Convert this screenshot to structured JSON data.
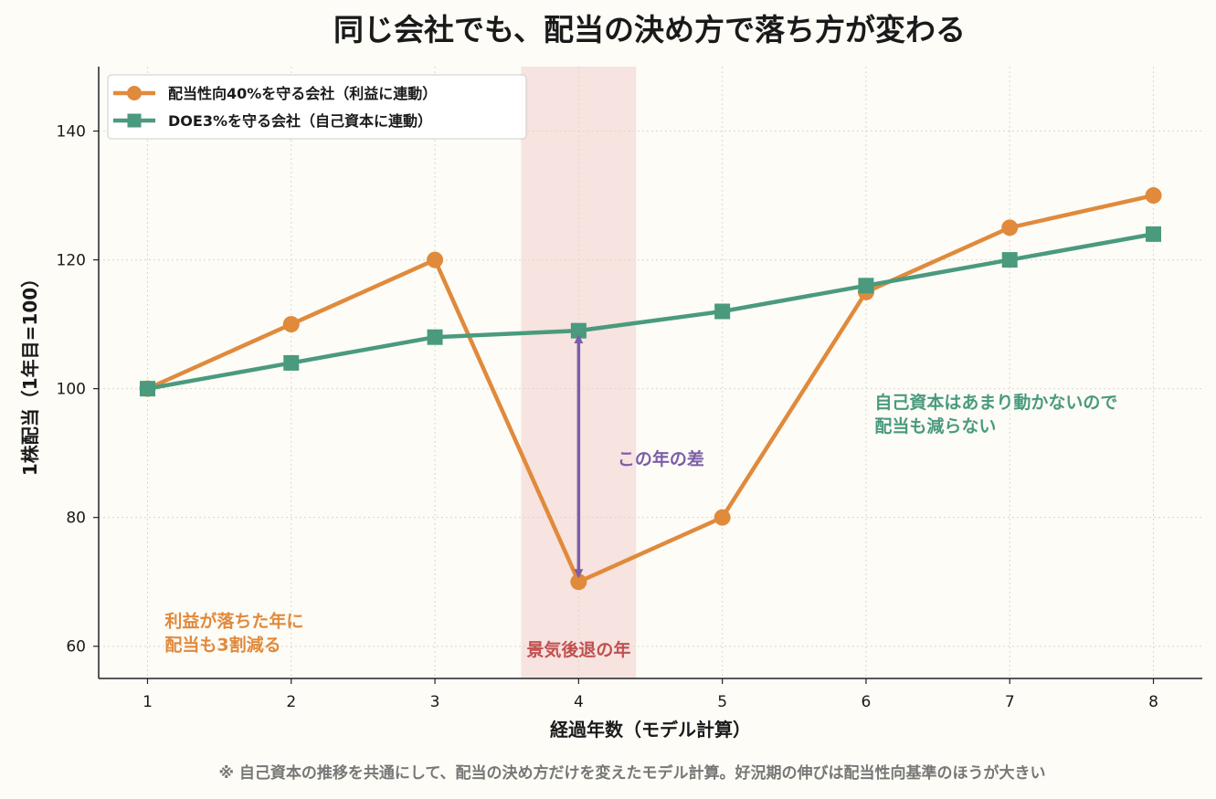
{
  "chart_data": {
    "type": "line",
    "title": "同じ会社でも、配当の決め方で落ち方が変わる",
    "xlabel": "経過年数（モデル計算）",
    "ylabel": "1株配当（1年目=100）",
    "x": [
      1,
      2,
      3,
      4,
      5,
      6,
      7,
      8
    ],
    "xlim": [
      0.66,
      8.34
    ],
    "ylim": [
      55,
      150
    ],
    "yticks": [
      60,
      80,
      100,
      120,
      140
    ],
    "grid": true,
    "legend": "top-left",
    "series": [
      {
        "name": "配当性向40%を守る会社（利益に連動）",
        "values": [
          100,
          110,
          120,
          70,
          80,
          115,
          125,
          130
        ],
        "color": "#e08a3c",
        "marker": "circle"
      },
      {
        "name": "DOE3%を守る会社（自己資本に連動）",
        "values": [
          100,
          104,
          108,
          109,
          112,
          116,
          120,
          124
        ],
        "color": "#4a9a7e",
        "marker": "square"
      }
    ],
    "shaded_region": {
      "x_range": [
        3.6,
        4.4
      ],
      "label": "景気後退の年",
      "color": "#e8a0a0"
    },
    "annotations": [
      {
        "text": "利益が落ちた年に\n配当も3割減る",
        "x": 1.12,
        "y": 62,
        "color": "#e08a3c"
      },
      {
        "text": "自己資本はあまり動かないので\n配当も減らない",
        "x": 6.06,
        "y": 96,
        "color": "#4a9a7e"
      },
      {
        "text": "この年の差",
        "x": 4.27,
        "y": 89,
        "color": "#7b5ea7"
      }
    ],
    "gap_arrow": {
      "x": 4,
      "from": 70,
      "to": 109,
      "color": "#7b5ea7"
    }
  },
  "footnote": "※ 自己資本の推移を共通にして、配当の決め方だけを変えたモデル計算。好況期の伸びは配当性向基準のほうが大きい"
}
